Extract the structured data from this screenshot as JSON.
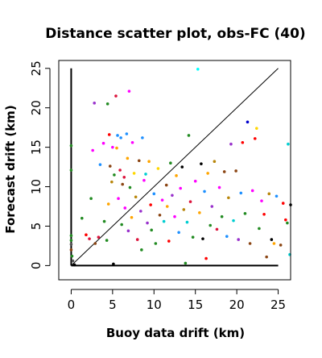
{
  "chart_data": {
    "type": "scatter",
    "title": "Distance scatter plot, obs-FC (40)",
    "xlabel": "Buoy data drift (km)",
    "ylabel": "Forecast drift (km)",
    "xlim": [
      -1.5,
      26.5
    ],
    "ylim": [
      -1.8,
      26.0
    ],
    "xticks": [
      "0",
      "5",
      "10",
      "15",
      "20",
      "25"
    ],
    "yticks": [
      "0",
      "5",
      "10",
      "15",
      "20",
      "25"
    ],
    "grid": false,
    "reference_lines": [
      {
        "type": "diagonal",
        "from": [
          0,
          0
        ],
        "to": [
          25,
          25
        ]
      },
      {
        "type": "vertical",
        "from": [
          0,
          0
        ],
        "to": [
          0,
          25
        ]
      },
      {
        "type": "horizontal",
        "from": [
          0,
          0
        ],
        "to": [
          25,
          0
        ]
      }
    ],
    "points": [
      [
        0.0,
        15.2,
        "#228b22"
      ],
      [
        0.0,
        12.1,
        "#228b22"
      ],
      [
        0.0,
        3.8,
        "#228b22"
      ],
      [
        0.0,
        3.2,
        "#228b22"
      ],
      [
        0.0,
        2.7,
        "#555555"
      ],
      [
        0.0,
        2.0,
        "#8b4513"
      ],
      [
        0.1,
        1.2,
        "#228b22"
      ],
      [
        0.2,
        0.6,
        "#555555"
      ],
      [
        0.4,
        0.1,
        "#000000"
      ],
      [
        1.3,
        6.0,
        "#228b22"
      ],
      [
        1.8,
        3.9,
        "#ff0000"
      ],
      [
        2.2,
        3.4,
        "#dc143c"
      ],
      [
        2.4,
        8.5,
        "#228b22"
      ],
      [
        2.6,
        14.6,
        "#ff00ff"
      ],
      [
        2.8,
        20.6,
        "#9932cc"
      ],
      [
        2.9,
        2.8,
        "#8b4513"
      ],
      [
        3.3,
        3.6,
        "#dc143c"
      ],
      [
        3.5,
        12.8,
        "#1e90ff"
      ],
      [
        3.9,
        15.5,
        "#ff00ff"
      ],
      [
        4.0,
        5.6,
        "#228b22"
      ],
      [
        4.3,
        3.2,
        "#228b22"
      ],
      [
        4.4,
        20.5,
        "#228b22"
      ],
      [
        4.5,
        7.8,
        "#ffa500"
      ],
      [
        4.6,
        16.6,
        "#ff0000"
      ],
      [
        4.7,
        12.6,
        "#8b4513"
      ],
      [
        4.9,
        10.6,
        "#b8860b"
      ],
      [
        5.0,
        15.0,
        "#ff00ff"
      ],
      [
        5.1,
        0.2,
        "#000000"
      ],
      [
        5.2,
        11.5,
        "#228b22"
      ],
      [
        5.4,
        21.5,
        "#dc143c"
      ],
      [
        5.5,
        14.9,
        "#ffa500"
      ],
      [
        5.6,
        16.5,
        "#1e90ff"
      ],
      [
        5.7,
        8.5,
        "#ff00ff"
      ],
      [
        5.9,
        12.1,
        "#dc143c"
      ],
      [
        6.0,
        16.2,
        "#1e90ff"
      ],
      [
        6.1,
        5.2,
        "#228b22"
      ],
      [
        6.2,
        10.3,
        "#8b4513"
      ],
      [
        6.4,
        11.2,
        "#dc143c"
      ],
      [
        6.5,
        7.3,
        "#ff00ff"
      ],
      [
        6.7,
        16.7,
        "#1e90ff"
      ],
      [
        6.8,
        13.6,
        "#ffa500"
      ],
      [
        6.9,
        4.4,
        "#9932cc"
      ],
      [
        7.0,
        22.1,
        "#ff00ff"
      ],
      [
        7.1,
        9.9,
        "#228b22"
      ],
      [
        7.3,
        6.1,
        "#ffa500"
      ],
      [
        7.4,
        15.6,
        "#ff00ff"
      ],
      [
        7.6,
        11.7,
        "#ffd700"
      ],
      [
        7.8,
        8.7,
        "#b8860b"
      ],
      [
        8.0,
        3.3,
        "#dc143c"
      ],
      [
        8.2,
        13.3,
        "#8b4513"
      ],
      [
        8.4,
        6.9,
        "#9932cc"
      ],
      [
        8.5,
        2.0,
        "#228b22"
      ],
      [
        8.6,
        16.2,
        "#1e90ff"
      ],
      [
        8.8,
        10.8,
        "#ff00ff"
      ],
      [
        9.0,
        11.6,
        "#00ced1"
      ],
      [
        9.2,
        5.4,
        "#9932cc"
      ],
      [
        9.4,
        13.2,
        "#ffa500"
      ],
      [
        9.6,
        7.7,
        "#ff0000"
      ],
      [
        9.7,
        4.5,
        "#228b22"
      ],
      [
        10.0,
        9.1,
        "#1e90ff"
      ],
      [
        10.2,
        2.8,
        "#228b22"
      ],
      [
        10.5,
        12.3,
        "#ffd700"
      ],
      [
        10.7,
        6.4,
        "#8b4513"
      ],
      [
        11.0,
        8.3,
        "#ff00ff"
      ],
      [
        11.2,
        5.6,
        "#00ced1"
      ],
      [
        11.5,
        10.2,
        "#8b4513"
      ],
      [
        11.6,
        7.5,
        "#ffa500"
      ],
      [
        11.8,
        3.1,
        "#ff0000"
      ],
      [
        12.0,
        13.0,
        "#228b22"
      ],
      [
        12.2,
        8.9,
        "#9932cc"
      ],
      [
        12.5,
        6.2,
        "#ff00ff"
      ],
      [
        12.7,
        11.4,
        "#ffa500"
      ],
      [
        13.0,
        4.2,
        "#1e90ff"
      ],
      [
        13.2,
        9.8,
        "#ff00ff"
      ],
      [
        13.4,
        12.5,
        "#000000"
      ],
      [
        13.6,
        7.1,
        "#b8860b"
      ],
      [
        13.8,
        0.3,
        "#228b22"
      ],
      [
        14.0,
        5.5,
        "#00ced1"
      ],
      [
        14.2,
        16.5,
        "#228b22"
      ],
      [
        14.4,
        8.1,
        "#dc143c"
      ],
      [
        14.7,
        3.6,
        "#228b22"
      ],
      [
        15.0,
        10.7,
        "#ff00ff"
      ],
      [
        15.3,
        24.9,
        "#00ffff"
      ],
      [
        15.5,
        6.7,
        "#ffa500"
      ],
      [
        15.7,
        12.9,
        "#000000"
      ],
      [
        15.9,
        3.4,
        "#000000"
      ],
      [
        16.1,
        9.4,
        "#1e90ff"
      ],
      [
        16.3,
        0.9,
        "#ff0000"
      ],
      [
        16.5,
        11.7,
        "#ffa500"
      ],
      [
        16.8,
        5.1,
        "#228b22"
      ],
      [
        17.0,
        7.5,
        "#9932cc"
      ],
      [
        17.3,
        13.2,
        "#b8860b"
      ],
      [
        17.6,
        4.6,
        "#dc143c"
      ],
      [
        17.9,
        9.9,
        "#ff00ff"
      ],
      [
        18.2,
        6.2,
        "#228b22"
      ],
      [
        18.5,
        11.9,
        "#8b4513"
      ],
      [
        18.8,
        3.7,
        "#1e90ff"
      ],
      [
        19.0,
        8.6,
        "#b8860b"
      ],
      [
        19.3,
        15.4,
        "#9932cc"
      ],
      [
        19.6,
        5.7,
        "#00ced1"
      ],
      [
        19.9,
        12.0,
        "#8b4513"
      ],
      [
        20.2,
        3.3,
        "#9932cc"
      ],
      [
        20.5,
        9.2,
        "#1e90ff"
      ],
      [
        20.7,
        15.6,
        "#ff0000"
      ],
      [
        21.0,
        6.6,
        "#228b22"
      ],
      [
        21.3,
        18.2,
        "#0000cd"
      ],
      [
        21.6,
        2.8,
        "#8b4513"
      ],
      [
        21.9,
        9.5,
        "#ff00ff"
      ],
      [
        22.2,
        16.1,
        "#ff0000"
      ],
      [
        22.4,
        17.4,
        "#ffd700"
      ],
      [
        22.7,
        4.7,
        "#228b22"
      ],
      [
        23.0,
        8.2,
        "#ff00ff"
      ],
      [
        23.3,
        6.5,
        "#ff0000"
      ],
      [
        23.6,
        1.1,
        "#8b4513"
      ],
      [
        23.9,
        9.1,
        "#b8860b"
      ],
      [
        24.2,
        3.3,
        "#000000"
      ],
      [
        24.5,
        2.8,
        "#ffa500"
      ],
      [
        24.8,
        8.8,
        "#1e90ff"
      ],
      [
        25.3,
        2.6,
        "#8b4513"
      ],
      [
        25.6,
        7.9,
        "#ff0000"
      ],
      [
        25.9,
        5.8,
        "#ff0000"
      ],
      [
        26.1,
        5.4,
        "#228b22"
      ],
      [
        26.2,
        15.4,
        "#00ced1"
      ],
      [
        26.4,
        1.4,
        "#00ced1"
      ],
      [
        26.5,
        7.7,
        "#000000"
      ]
    ]
  }
}
